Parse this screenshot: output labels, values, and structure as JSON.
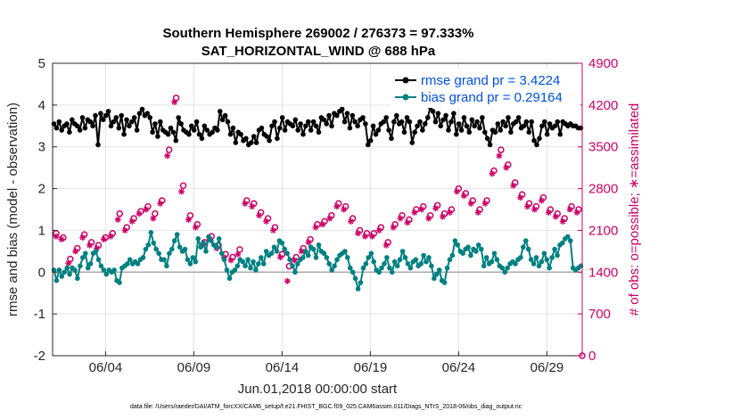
{
  "chart_data": {
    "type": "line",
    "title": "Southern Hemisphere 269002 / 276373 = 97.333%",
    "subtitle": "SAT_HORIZONTAL_WIND @ 688 hPa",
    "xlabel": "Jun.01,2018 00:00:00 start",
    "ylabel_left": "rmse and bias (model - observation)",
    "ylabel_right": "# of obs: o=possible; ∗=assimilated",
    "ylim_left": [
      -2,
      5
    ],
    "ylim_right": [
      0,
      4900
    ],
    "xlim": [
      "2018-06-01 00:00",
      "2018-07-01 00:00"
    ],
    "left_ticks": [
      "-2",
      "-1",
      "0",
      "1",
      "2",
      "3",
      "4",
      "5"
    ],
    "right_ticks": [
      "0",
      "700",
      "1400",
      "2100",
      "2800",
      "3500",
      "4200",
      "4900"
    ],
    "x_ticks": [
      "06/04",
      "06/09",
      "06/14",
      "06/19",
      "06/24",
      "06/29"
    ],
    "grid": true,
    "legend_position": "top-right",
    "footer": "data file: /Users/raeder/DAI/ATM_forcXX/CAM6_setup/f.e21.FHIST_BGC.f09_025.CAM6assim.011/Diags_NTrS_2018-06/obs_diag_output.nc",
    "colors": {
      "rmse": "#000000",
      "bias": "#008080",
      "obs": "#cc0066",
      "zero_line": "#aaaaaa",
      "legend_text": "#0050e0",
      "grid": "#e3e3e3"
    },
    "series": [
      {
        "name": "rmse grand pr = 3.4224",
        "axis": "left",
        "values": [
          3.55,
          3.45,
          3.6,
          3.4,
          3.5,
          3.55,
          3.35,
          3.65,
          3.55,
          3.5,
          3.4,
          3.7,
          3.45,
          3.65,
          3.6,
          3.5,
          3.75,
          3.05,
          3.8,
          3.65,
          3.75,
          3.85,
          3.5,
          3.6,
          3.7,
          3.45,
          3.75,
          3.3,
          3.65,
          3.5,
          3.6,
          3.7,
          3.4,
          3.8,
          3.9,
          3.75,
          3.8,
          3.7,
          3.35,
          3.55,
          3.25,
          3.6,
          3.4,
          3.35,
          3.3,
          3.45,
          3.35,
          3.15,
          3.7,
          3.55,
          3.4,
          3.35,
          3.3,
          3.5,
          3.4,
          3.6,
          3.3,
          3.2,
          3.5,
          3.4,
          3.3,
          3.35,
          3.45,
          3.4,
          3.85,
          3.65,
          3.75,
          3.6,
          3.3,
          3.45,
          3.1,
          3.35,
          3.3,
          3.15,
          3.2,
          3.05,
          3.1,
          3.25,
          3.1,
          3.4,
          3.45,
          3.3,
          3.25,
          3.15,
          3.5,
          3.6,
          3.2,
          3.45,
          3.7,
          3.4,
          3.6,
          3.55,
          3.5,
          3.65,
          3.4,
          3.55,
          3.3,
          3.5,
          3.6,
          3.4,
          3.6,
          3.5,
          3.35,
          3.7,
          3.65,
          3.55,
          3.75,
          3.5,
          3.8,
          3.75,
          3.85,
          3.9,
          3.6,
          3.8,
          3.45,
          3.75,
          3.6,
          3.5,
          3.65,
          3.7,
          3.55,
          3.05,
          3.15,
          3.5,
          3.3,
          3.4,
          3.55,
          3.6,
          3.7,
          3.4,
          3.2,
          3.6,
          3.75,
          3.55,
          3.6,
          3.35,
          3.7,
          3.6,
          3.1,
          3.35,
          3.5,
          3.6,
          3.4,
          3.55,
          3.7,
          3.95,
          3.85,
          3.6,
          3.8,
          3.5,
          3.65,
          3.75,
          3.4,
          3.6,
          3.8,
          3.3,
          3.55,
          3.4,
          3.7,
          3.5,
          3.35,
          3.65,
          3.5,
          3.6,
          3.45,
          3.7,
          3.35,
          3.2,
          3.05,
          3.4,
          3.35,
          3.55,
          3.4,
          3.6,
          3.5,
          3.7,
          3.35,
          3.55,
          3.6,
          3.7,
          3.45,
          3.5,
          3.6,
          3.35,
          3.6,
          3.15,
          3.05,
          3.2,
          3.5,
          3.6,
          3.3,
          3.55,
          3.45,
          3.5,
          3.6,
          3.3,
          3.6,
          3.55,
          3.5,
          3.55,
          3.5,
          3.5,
          3.45,
          3.45
        ]
      },
      {
        "name": "bias grand pr = 0.29164",
        "axis": "left",
        "values": [
          0.05,
          -0.2,
          0.05,
          -0.1,
          0.0,
          0.1,
          -0.05,
          0.1,
          0.05,
          -0.15,
          0.15,
          0.35,
          0.45,
          0.1,
          0.2,
          0.45,
          0.5,
          0.3,
          0.15,
          0.05,
          -0.05,
          0.05,
          0.0,
          0.05,
          -0.2,
          -0.25,
          0.1,
          0.15,
          0.2,
          0.3,
          0.2,
          0.25,
          0.2,
          0.3,
          0.35,
          0.55,
          0.65,
          0.95,
          0.7,
          0.55,
          0.45,
          0.3,
          0.3,
          0.15,
          0.45,
          0.55,
          0.75,
          0.9,
          0.6,
          0.5,
          0.55,
          0.3,
          0.2,
          0.35,
          0.25,
          0.8,
          0.6,
          0.7,
          0.5,
          0.85,
          0.75,
          0.65,
          0.6,
          0.8,
          0.45,
          0.3,
          0.05,
          -0.15,
          0.0,
          0.05,
          0.15,
          0.3,
          0.25,
          0.15,
          0.3,
          0.1,
          0.25,
          0.05,
          0.2,
          0.35,
          0.2,
          0.5,
          0.4,
          0.45,
          0.6,
          0.5,
          0.75,
          0.7,
          0.55,
          0.45,
          0.3,
          0.15,
          0.0,
          0.2,
          0.3,
          0.35,
          0.5,
          0.4,
          0.6,
          0.55,
          0.35,
          0.65,
          0.5,
          0.45,
          0.35,
          0.2,
          0.05,
          0.15,
          0.3,
          0.4,
          0.45,
          0.5,
          0.35,
          0.1,
          0.0,
          -0.15,
          -0.4,
          -0.25,
          0.1,
          0.2,
          0.35,
          0.45,
          0.25,
          0.05,
          0.0,
          0.1,
          0.2,
          0.35,
          0.1,
          0.0,
          0.25,
          0.15,
          0.3,
          0.5,
          0.35,
          0.2,
          0.1,
          0.25,
          0.3,
          0.15,
          0.2,
          0.4,
          0.25,
          0.35,
          0.15,
          -0.15,
          -0.05,
          0.05,
          -0.2,
          -0.25,
          0.1,
          0.3,
          0.4,
          0.75,
          0.65,
          0.5,
          0.45,
          0.55,
          0.6,
          0.4,
          0.55,
          0.5,
          0.65,
          0.55,
          0.15,
          0.35,
          0.2,
          0.25,
          0.45,
          0.3,
          0.15,
          0.1,
          0.0,
          0.1,
          0.2,
          0.25,
          0.2,
          0.3,
          0.35,
          0.6,
          0.75,
          0.55,
          0.3,
          0.2,
          0.35,
          0.15,
          0.25,
          0.45,
          0.3,
          0.1,
          0.35,
          0.55,
          0.4,
          0.65,
          0.7,
          0.8,
          0.85,
          0.75,
          0.1,
          0.05,
          0.1,
          0.15
        ]
      },
      {
        "name": "obs possible",
        "axis": "right",
        "marker": "o",
        "points": [
          [
            0.2,
            2050
          ],
          [
            0.6,
            1980
          ],
          [
            1.0,
            1620
          ],
          [
            1.4,
            1800
          ],
          [
            1.8,
            2030
          ],
          [
            2.2,
            1900
          ],
          [
            2.6,
            1850
          ],
          [
            3.0,
            1980
          ],
          [
            3.4,
            2050
          ],
          [
            3.8,
            2380
          ],
          [
            4.2,
            2150
          ],
          [
            4.6,
            2300
          ],
          [
            5.0,
            2420
          ],
          [
            5.4,
            2500
          ],
          [
            5.8,
            2380
          ],
          [
            6.2,
            2600
          ],
          [
            6.6,
            3450
          ],
          [
            7.0,
            4320
          ],
          [
            7.4,
            2850
          ],
          [
            7.8,
            2350
          ],
          [
            8.2,
            2200
          ],
          [
            8.6,
            1900
          ],
          [
            9.0,
            2000
          ],
          [
            9.4,
            1850
          ],
          [
            9.8,
            1700
          ],
          [
            10.2,
            1650
          ],
          [
            10.6,
            1780
          ],
          [
            11.0,
            2600
          ],
          [
            11.4,
            2550
          ],
          [
            11.8,
            2400
          ],
          [
            12.2,
            2300
          ],
          [
            12.6,
            2150
          ],
          [
            13.0,
            1700
          ],
          [
            13.4,
            1500
          ],
          [
            13.8,
            1650
          ],
          [
            14.2,
            1800
          ],
          [
            14.6,
            1950
          ],
          [
            15.0,
            2200
          ],
          [
            15.4,
            2250
          ],
          [
            15.8,
            2350
          ],
          [
            16.2,
            2550
          ],
          [
            16.6,
            2500
          ],
          [
            17.0,
            2300
          ],
          [
            17.4,
            2100
          ],
          [
            17.8,
            2050
          ],
          [
            18.2,
            2050
          ],
          [
            18.6,
            2150
          ],
          [
            19.0,
            1900
          ],
          [
            19.4,
            2200
          ],
          [
            19.8,
            2350
          ],
          [
            20.2,
            2280
          ],
          [
            20.6,
            2450
          ],
          [
            21.0,
            2500
          ],
          [
            21.4,
            2350
          ],
          [
            21.8,
            2520
          ],
          [
            22.2,
            2380
          ],
          [
            22.6,
            2450
          ],
          [
            23.0,
            2800
          ],
          [
            23.4,
            2720
          ],
          [
            23.8,
            2600
          ],
          [
            24.2,
            2450
          ],
          [
            24.6,
            2600
          ],
          [
            25.0,
            3100
          ],
          [
            25.4,
            3450
          ],
          [
            25.8,
            3200
          ],
          [
            26.2,
            2900
          ],
          [
            26.6,
            2700
          ],
          [
            27.0,
            2550
          ],
          [
            27.4,
            2500
          ],
          [
            27.8,
            2650
          ],
          [
            28.2,
            2450
          ],
          [
            28.6,
            2380
          ],
          [
            29.0,
            2300
          ],
          [
            29.4,
            2500
          ],
          [
            29.8,
            2450
          ],
          [
            30.0,
            0
          ]
        ]
      },
      {
        "name": "obs assimilated",
        "axis": "right",
        "marker": "*",
        "points": [
          [
            0.2,
            2000
          ],
          [
            0.5,
            1950
          ],
          [
            0.9,
            1550
          ],
          [
            1.3,
            1750
          ],
          [
            1.7,
            1980
          ],
          [
            2.1,
            1850
          ],
          [
            2.5,
            1800
          ],
          [
            2.9,
            1950
          ],
          [
            3.3,
            2000
          ],
          [
            3.7,
            2280
          ],
          [
            4.1,
            2100
          ],
          [
            4.5,
            2250
          ],
          [
            4.9,
            2380
          ],
          [
            5.3,
            2450
          ],
          [
            5.7,
            2300
          ],
          [
            6.1,
            2550
          ],
          [
            6.5,
            3350
          ],
          [
            6.9,
            4250
          ],
          [
            7.3,
            2750
          ],
          [
            7.7,
            2280
          ],
          [
            8.1,
            2150
          ],
          [
            8.5,
            1850
          ],
          [
            8.9,
            1950
          ],
          [
            9.3,
            1800
          ],
          [
            9.7,
            1650
          ],
          [
            10.1,
            1600
          ],
          [
            10.5,
            1700
          ],
          [
            10.9,
            2550
          ],
          [
            11.3,
            2500
          ],
          [
            11.7,
            2350
          ],
          [
            12.1,
            2250
          ],
          [
            12.5,
            2100
          ],
          [
            12.9,
            1650
          ],
          [
            13.3,
            1250
          ],
          [
            13.7,
            1600
          ],
          [
            14.1,
            1750
          ],
          [
            14.5,
            1900
          ],
          [
            14.9,
            2150
          ],
          [
            15.3,
            2200
          ],
          [
            15.7,
            2300
          ],
          [
            16.1,
            2500
          ],
          [
            16.5,
            2450
          ],
          [
            16.9,
            2250
          ],
          [
            17.3,
            2050
          ],
          [
            17.7,
            2000
          ],
          [
            18.1,
            2000
          ],
          [
            18.5,
            2100
          ],
          [
            18.9,
            1850
          ],
          [
            19.3,
            2150
          ],
          [
            19.7,
            2300
          ],
          [
            20.1,
            2230
          ],
          [
            20.5,
            2400
          ],
          [
            20.9,
            2450
          ],
          [
            21.3,
            2300
          ],
          [
            21.7,
            2470
          ],
          [
            22.1,
            2330
          ],
          [
            22.5,
            2400
          ],
          [
            22.9,
            2750
          ],
          [
            23.3,
            2680
          ],
          [
            23.7,
            2550
          ],
          [
            24.1,
            2400
          ],
          [
            24.5,
            2550
          ],
          [
            24.9,
            3050
          ],
          [
            25.3,
            3350
          ],
          [
            25.7,
            3150
          ],
          [
            26.1,
            2850
          ],
          [
            26.5,
            2650
          ],
          [
            26.9,
            2500
          ],
          [
            27.3,
            2450
          ],
          [
            27.7,
            2600
          ],
          [
            28.1,
            2400
          ],
          [
            28.5,
            2330
          ],
          [
            28.9,
            2250
          ],
          [
            29.3,
            2450
          ],
          [
            29.7,
            2400
          ]
        ]
      }
    ]
  }
}
